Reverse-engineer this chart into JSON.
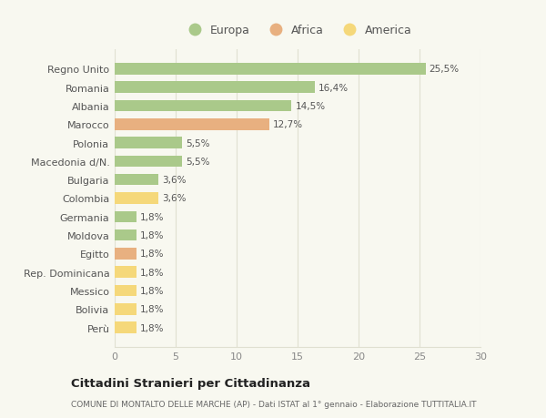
{
  "categories": [
    "Regno Unito",
    "Romania",
    "Albania",
    "Marocco",
    "Polonia",
    "Macedonia d/N.",
    "Bulgaria",
    "Colombia",
    "Germania",
    "Moldova",
    "Egitto",
    "Rep. Dominicana",
    "Messico",
    "Bolivia",
    "Perù"
  ],
  "values": [
    25.5,
    16.4,
    14.5,
    12.7,
    5.5,
    5.5,
    3.6,
    3.6,
    1.8,
    1.8,
    1.8,
    1.8,
    1.8,
    1.8,
    1.8
  ],
  "labels": [
    "25,5%",
    "16,4%",
    "14,5%",
    "12,7%",
    "5,5%",
    "5,5%",
    "3,6%",
    "3,6%",
    "1,8%",
    "1,8%",
    "1,8%",
    "1,8%",
    "1,8%",
    "1,8%",
    "1,8%"
  ],
  "colors": [
    "#aac98a",
    "#aac98a",
    "#aac98a",
    "#e8b080",
    "#aac98a",
    "#aac98a",
    "#aac98a",
    "#f5d87a",
    "#aac98a",
    "#aac98a",
    "#e8b080",
    "#f5d87a",
    "#f5d87a",
    "#f5d87a",
    "#f5d87a"
  ],
  "legend": [
    {
      "label": "Europa",
      "color": "#aac98a"
    },
    {
      "label": "Africa",
      "color": "#e8b080"
    },
    {
      "label": "America",
      "color": "#f5d87a"
    }
  ],
  "xlim": [
    0,
    30
  ],
  "xticks": [
    0,
    5,
    10,
    15,
    20,
    25,
    30
  ],
  "title": "Cittadini Stranieri per Cittadinanza",
  "subtitle": "COMUNE DI MONTALTO DELLE MARCHE (AP) - Dati ISTAT al 1° gennaio - Elaborazione TUTTITALIA.IT",
  "bg_color": "#f8f8f0",
  "grid_color": "#e0e0d0",
  "bar_height": 0.62,
  "label_fontsize": 7.5,
  "ytick_fontsize": 8,
  "xtick_fontsize": 8
}
